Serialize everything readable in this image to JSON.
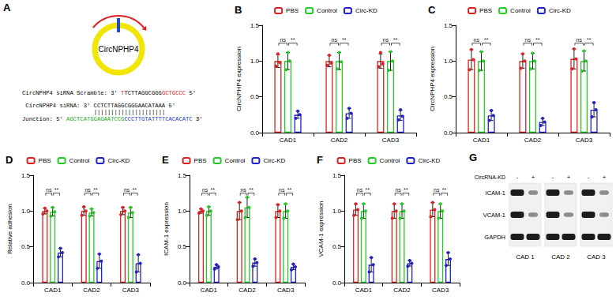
{
  "diagram": {
    "panel": "A",
    "circle_label": "CircNPHP4",
    "lines": [
      {
        "segments": [
          {
            "text": "CircNPHP4 siRNA Scramble: 3' ",
            "color": "#000000"
          },
          {
            "text": "T",
            "color": "#e02020"
          },
          {
            "text": "TCTTAGGCGGG",
            "color": "#000000"
          },
          {
            "text": "GCTGCCC",
            "color": "#e02020"
          },
          {
            "text": " 5'",
            "color": "#000000"
          }
        ]
      },
      {
        "segments": [
          {
            "text": "CircNPHP4 siRNA: 3' ",
            "color": "#000000"
          },
          {
            "text": "CCTCTTAGGCGGGAACATAAA",
            "color": "#000000"
          },
          {
            "text": " 5'",
            "color": "#000000"
          }
        ]
      },
      {
        "segments": [
          {
            "text": "|||||||||||||||||||||",
            "color": "#000000"
          }
        ]
      },
      {
        "segments": [
          {
            "text": "Junction: 5' ",
            "color": "#000000"
          },
          {
            "text": "AGCTCATGGAGAATCCG",
            "color": "#22aa22"
          },
          {
            "text": "CCCTTGTATTTTCACACATC",
            "color": "#2040cc"
          },
          {
            "text": " 3'",
            "color": "#000000"
          }
        ]
      }
    ]
  },
  "chart_data": [
    {
      "panel": "B",
      "type": "bar",
      "y_label": "CircNPHP4 expression",
      "categories": [
        "CAD1",
        "CAD2",
        "CAD3"
      ],
      "ylim": [
        0,
        1.5
      ],
      "yticks": [
        {
          "value": 0,
          "label": "0.0"
        },
        {
          "value": 0.5,
          "label": "0.5"
        },
        {
          "value": 1,
          "label": "1.0"
        },
        {
          "value": 1.5,
          "label": "1.5"
        }
      ],
      "grid": false,
      "legend": "top",
      "series": [
        {
          "name": "PBS",
          "color": "#e02020",
          "values": [
            1.0,
            1.0,
            1.0
          ],
          "errors": [
            0.09,
            0.08,
            0.1
          ],
          "points": [
            [
              0.93,
              1.1,
              0.98
            ],
            [
              0.94,
              1.08,
              0.97
            ],
            [
              0.92,
              1.12,
              0.96
            ]
          ]
        },
        {
          "name": "Control",
          "color": "#22cc22",
          "values": [
            1.0,
            1.0,
            1.0
          ],
          "errors": [
            0.12,
            0.12,
            0.13
          ],
          "points": [
            [
              0.88,
              1.12,
              1.0
            ],
            [
              0.89,
              1.12,
              0.99
            ],
            [
              0.87,
              1.13,
              1.0
            ]
          ]
        },
        {
          "name": "Circ-KD",
          "color": "#2020cc",
          "values": [
            0.25,
            0.27,
            0.24
          ],
          "errors": [
            0.05,
            0.07,
            0.07
          ],
          "points": [
            [
              0.2,
              0.3,
              0.25
            ],
            [
              0.2,
              0.34,
              0.27
            ],
            [
              0.18,
              0.32,
              0.23
            ]
          ]
        }
      ],
      "comparisons": [
        {
          "groups": [
            "PBS",
            "Control"
          ],
          "label": "ns",
          "y": 1.25
        },
        {
          "groups": [
            "Control",
            "Circ-KD"
          ],
          "label": "**",
          "y": 1.25
        }
      ]
    },
    {
      "panel": "C",
      "type": "bar",
      "y_label": "CircNPHP4 expression",
      "categories": [
        "CAD1",
        "CAD2",
        "CAD3"
      ],
      "ylim": [
        0,
        1.5
      ],
      "yticks": [
        {
          "value": 0,
          "label": "0.0"
        },
        {
          "value": 0.5,
          "label": "0.5"
        },
        {
          "value": 1,
          "label": "1.0"
        },
        {
          "value": 1.5,
          "label": "1.5"
        }
      ],
      "grid": false,
      "legend": "top",
      "series": [
        {
          "name": "PBS",
          "color": "#e02020",
          "values": [
            1.02,
            1.0,
            1.03
          ],
          "errors": [
            0.14,
            0.1,
            0.14
          ],
          "points": [
            [
              0.88,
              1.16,
              1.02
            ],
            [
              0.9,
              1.1,
              1.0
            ],
            [
              0.89,
              1.17,
              1.03
            ]
          ]
        },
        {
          "name": "Control",
          "color": "#22cc22",
          "values": [
            1.0,
            1.0,
            1.0
          ],
          "errors": [
            0.13,
            0.11,
            0.14
          ],
          "points": [
            [
              0.87,
              1.13,
              1.0
            ],
            [
              0.89,
              1.11,
              1.0
            ],
            [
              0.86,
              1.14,
              1.0
            ]
          ]
        },
        {
          "name": "Circ-KD",
          "color": "#2020cc",
          "values": [
            0.24,
            0.15,
            0.32
          ],
          "errors": [
            0.07,
            0.05,
            0.1
          ],
          "points": [
            [
              0.17,
              0.31,
              0.24
            ],
            [
              0.1,
              0.2,
              0.15
            ],
            [
              0.22,
              0.42,
              0.32
            ]
          ]
        }
      ],
      "comparisons": [
        {
          "groups": [
            "PBS",
            "Control"
          ],
          "label": "ns",
          "y": 1.25
        },
        {
          "groups": [
            "Control",
            "Circ-KD"
          ],
          "label": "**",
          "y": 1.25
        }
      ]
    },
    {
      "panel": "D",
      "type": "bar",
      "y_label": "Relative adhesion",
      "categories": [
        "CAD1",
        "CAD2",
        "CAD3"
      ],
      "ylim": [
        0,
        1.5
      ],
      "yticks": [
        {
          "value": 0,
          "label": "0.0"
        },
        {
          "value": 0.5,
          "label": "0.5"
        },
        {
          "value": 1,
          "label": "1.0"
        },
        {
          "value": 1.5,
          "label": "1.5"
        }
      ],
      "grid": false,
      "legend": "top",
      "series": [
        {
          "name": "PBS",
          "color": "#e02020",
          "values": [
            1.0,
            1.0,
            1.0
          ],
          "errors": [
            0.04,
            0.06,
            0.05
          ],
          "points": [
            [
              0.96,
              1.04,
              1.0
            ],
            [
              0.94,
              1.06,
              1.0
            ],
            [
              0.95,
              1.05,
              1.0
            ]
          ]
        },
        {
          "name": "Control",
          "color": "#22cc22",
          "values": [
            0.99,
            0.98,
            0.98
          ],
          "errors": [
            0.06,
            0.05,
            0.07
          ],
          "points": [
            [
              0.93,
              1.05,
              0.99
            ],
            [
              0.93,
              1.03,
              0.98
            ],
            [
              0.91,
              1.05,
              0.98
            ]
          ]
        },
        {
          "name": "Circ-KD",
          "color": "#2020cc",
          "values": [
            0.42,
            0.3,
            0.27
          ],
          "errors": [
            0.06,
            0.1,
            0.12
          ],
          "points": [
            [
              0.36,
              0.48,
              0.42
            ],
            [
              0.2,
              0.4,
              0.3
            ],
            [
              0.15,
              0.39,
              0.27
            ]
          ]
        }
      ],
      "comparisons": [
        {
          "groups": [
            "PBS",
            "Control"
          ],
          "label": "ns",
          "y": 1.25
        },
        {
          "groups": [
            "Control",
            "Circ-KD"
          ],
          "label": "**",
          "y": 1.25
        }
      ]
    },
    {
      "panel": "E",
      "type": "bar",
      "y_label": "ICAM-1 expression",
      "categories": [
        "CAD1",
        "CAD2",
        "CAD3"
      ],
      "ylim": [
        0,
        1.5
      ],
      "yticks": [
        {
          "value": 0,
          "label": "0.0"
        },
        {
          "value": 0.5,
          "label": "0.5"
        },
        {
          "value": 1,
          "label": "1.0"
        },
        {
          "value": 1.5,
          "label": "1.5"
        }
      ],
      "grid": false,
      "legend": "top",
      "series": [
        {
          "name": "PBS",
          "color": "#e02020",
          "values": [
            1.0,
            1.0,
            1.0
          ],
          "errors": [
            0.03,
            0.12,
            0.09
          ],
          "points": [
            [
              0.97,
              1.03,
              1.0
            ],
            [
              0.88,
              1.12,
              1.0
            ],
            [
              0.91,
              1.09,
              1.0
            ]
          ]
        },
        {
          "name": "Control",
          "color": "#22cc22",
          "values": [
            1.0,
            1.05,
            1.0
          ],
          "errors": [
            0.06,
            0.14,
            0.1
          ],
          "points": [
            [
              0.94,
              1.06,
              1.0
            ],
            [
              0.91,
              1.19,
              1.05
            ],
            [
              0.9,
              1.1,
              1.0
            ]
          ]
        },
        {
          "name": "Circ-KD",
          "color": "#2020cc",
          "values": [
            0.22,
            0.28,
            0.22
          ],
          "errors": [
            0.03,
            0.05,
            0.04
          ],
          "points": [
            [
              0.19,
              0.25,
              0.22
            ],
            [
              0.23,
              0.33,
              0.28
            ],
            [
              0.18,
              0.26,
              0.22
            ]
          ]
        }
      ],
      "comparisons": [
        {
          "groups": [
            "PBS",
            "Control"
          ],
          "label": "ns",
          "y": 1.25
        },
        {
          "groups": [
            "Control",
            "Circ-KD"
          ],
          "label": "**",
          "y": 1.25
        }
      ]
    },
    {
      "panel": "F",
      "type": "bar",
      "y_label": "VCAM-1 expression",
      "categories": [
        "CAD1",
        "CAD2",
        "CAD3"
      ],
      "ylim": [
        0,
        1.5
      ],
      "yticks": [
        {
          "value": 0,
          "label": "0.0"
        },
        {
          "value": 0.5,
          "label": "0.5"
        },
        {
          "value": 1,
          "label": "1.0"
        },
        {
          "value": 1.5,
          "label": "1.5"
        }
      ],
      "grid": false,
      "legend": "top",
      "series": [
        {
          "name": "PBS",
          "color": "#e02020",
          "values": [
            1.02,
            1.0,
            1.02
          ],
          "errors": [
            0.08,
            0.1,
            0.1
          ],
          "points": [
            [
              0.94,
              1.1,
              1.02
            ],
            [
              0.9,
              1.1,
              1.0
            ],
            [
              0.92,
              1.12,
              1.02
            ]
          ]
        },
        {
          "name": "Control",
          "color": "#22cc22",
          "values": [
            1.0,
            1.0,
            1.0
          ],
          "errors": [
            0.1,
            0.1,
            0.1
          ],
          "points": [
            [
              0.9,
              1.1,
              1.0
            ],
            [
              0.9,
              1.1,
              1.0
            ],
            [
              0.9,
              1.1,
              1.0
            ]
          ]
        },
        {
          "name": "Circ-KD",
          "color": "#2020cc",
          "values": [
            0.25,
            0.27,
            0.33
          ],
          "errors": [
            0.1,
            0.04,
            0.09
          ],
          "points": [
            [
              0.15,
              0.35,
              0.25
            ],
            [
              0.23,
              0.31,
              0.27
            ],
            [
              0.24,
              0.42,
              0.33
            ]
          ]
        }
      ],
      "comparisons": [
        {
          "groups": [
            "PBS",
            "Control"
          ],
          "label": "ns",
          "y": 1.25
        },
        {
          "groups": [
            "Control",
            "Circ-KD"
          ],
          "label": "**",
          "y": 1.25
        }
      ]
    }
  ],
  "blot": {
    "panel": "G",
    "treatment_label": "CircRNA-KD",
    "lanes": [
      "-",
      "+"
    ],
    "proteins": [
      "ICAM-1",
      "VCAM-1",
      "GAPDH"
    ],
    "groups": [
      "CAD 1",
      "CAD 2",
      "CAD 3"
    ]
  }
}
